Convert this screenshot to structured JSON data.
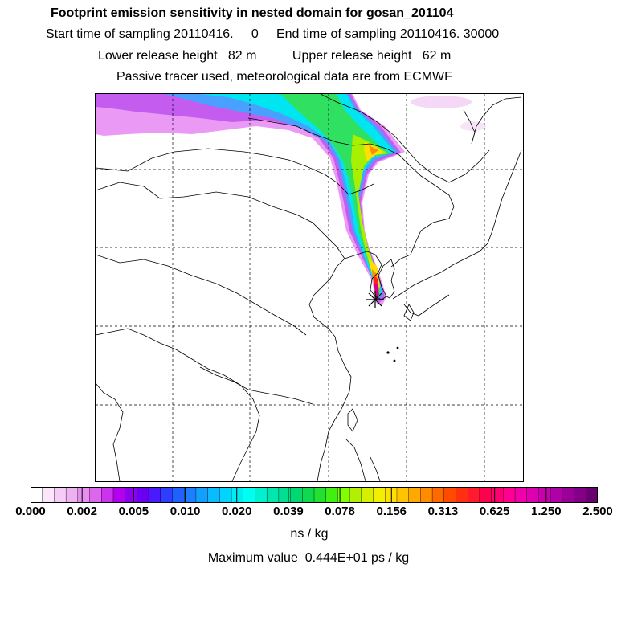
{
  "header": {
    "title": "Footprint emission sensitivity in nested domain for gosan_201104",
    "sampling_line": "Start time of sampling 20110416.     0     End time of sampling 20110416. 30000",
    "release_line": "Lower release height   82 m          Upper release height   62 m",
    "tracer_line": "Passive tracer used, meteorological data are from ECMWF"
  },
  "colorbar": {
    "tick_labels": [
      "0.000",
      "0.002",
      "0.005",
      "0.010",
      "0.020",
      "0.039",
      "0.078",
      "0.156",
      "0.313",
      "0.625",
      "1.250",
      "2.500"
    ],
    "segments": [
      "#ffffff",
      "#fbe6fb",
      "#f5ccf6",
      "#eeb2f1",
      "#e88ef0",
      "#dd66ee",
      "#cc33ee",
      "#b300ee",
      "#8c00ee",
      "#6a00f0",
      "#4a1aff",
      "#2e3dff",
      "#2060ff",
      "#1a80ff",
      "#12a0ff",
      "#0abcff",
      "#00d4ff",
      "#00ecf5",
      "#00fff0",
      "#00f0d0",
      "#00e8b0",
      "#00e090",
      "#00d870",
      "#10d850",
      "#20e030",
      "#40f010",
      "#80ff00",
      "#b0f000",
      "#d8f000",
      "#f0f000",
      "#ffe000",
      "#ffc400",
      "#ffa800",
      "#ff8c00",
      "#ff6a00",
      "#ff4a00",
      "#ff3010",
      "#ff1a30",
      "#ff0050",
      "#ff0070",
      "#ff0090",
      "#f000a8",
      "#dc00b0",
      "#c800b0",
      "#b000a8",
      "#9a0098",
      "#820088",
      "#6a0070"
    ],
    "units": "ns / kg"
  },
  "footer": {
    "max_value": "Maximum value  0.444E+01 ps / kg"
  },
  "map": {
    "release_marker": "gosan-release-site",
    "plume_colors": {
      "outer": "#ea9af4",
      "violet": "#c45cf0",
      "blue": "#4aa0ff",
      "cyan": "#00e6f0",
      "green": "#30e060",
      "lime": "#a8f000",
      "yellow": "#ffe000",
      "orange": "#ff8c00",
      "red": "#ff2020",
      "magenta": "#d0008c"
    }
  }
}
